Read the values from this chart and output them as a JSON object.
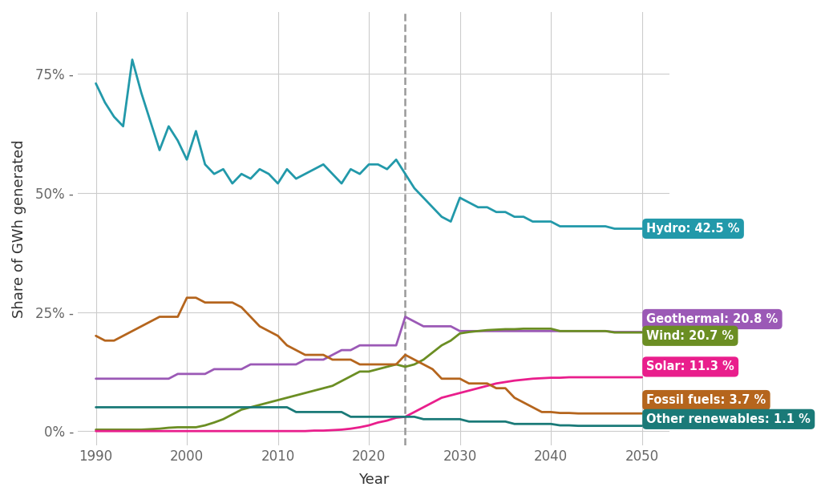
{
  "title": "",
  "xlabel": "Year",
  "ylabel": "Share of GWh generated",
  "background_color": "#ffffff",
  "dashed_line_x": 2024,
  "colors": {
    "hydro": "#2299aa",
    "geothermal": "#9b59b6",
    "wind": "#6b8e23",
    "solar": "#e91e8c",
    "fossil": "#b5651d",
    "other": "#1a7a78"
  },
  "labels": {
    "hydro": "Hydro: 42.5 %",
    "geothermal": "Geothermal: 20.8 %",
    "wind": "Wind: 20.7 %",
    "solar": "Solar: 11.3 %",
    "fossil": "Fossil fuels: 3.7 %",
    "other": "Other renewables: 1.1 %"
  },
  "hydro": {
    "years": [
      1990,
      1991,
      1992,
      1993,
      1994,
      1995,
      1996,
      1997,
      1998,
      1999,
      2000,
      2001,
      2002,
      2003,
      2004,
      2005,
      2006,
      2007,
      2008,
      2009,
      2010,
      2011,
      2012,
      2013,
      2014,
      2015,
      2016,
      2017,
      2018,
      2019,
      2020,
      2021,
      2022,
      2023,
      2024,
      2025,
      2026,
      2027,
      2028,
      2029,
      2030,
      2031,
      2032,
      2033,
      2034,
      2035,
      2036,
      2037,
      2038,
      2039,
      2040,
      2041,
      2042,
      2043,
      2044,
      2045,
      2046,
      2047,
      2048,
      2049,
      2050
    ],
    "values": [
      73,
      69,
      66,
      64,
      78,
      71,
      65,
      59,
      64,
      61,
      57,
      63,
      56,
      54,
      55,
      52,
      54,
      53,
      55,
      54,
      52,
      55,
      53,
      54,
      55,
      56,
      54,
      52,
      55,
      54,
      56,
      56,
      55,
      57,
      54,
      51,
      49,
      47,
      45,
      44,
      49,
      48,
      47,
      47,
      46,
      46,
      45,
      45,
      44,
      44,
      44,
      43,
      43,
      43,
      43,
      43,
      43,
      42.5,
      42.5,
      42.5,
      42.5
    ]
  },
  "geothermal": {
    "years": [
      1990,
      1991,
      1992,
      1993,
      1994,
      1995,
      1996,
      1997,
      1998,
      1999,
      2000,
      2001,
      2002,
      2003,
      2004,
      2005,
      2006,
      2007,
      2008,
      2009,
      2010,
      2011,
      2012,
      2013,
      2014,
      2015,
      2016,
      2017,
      2018,
      2019,
      2020,
      2021,
      2022,
      2023,
      2024,
      2025,
      2026,
      2027,
      2028,
      2029,
      2030,
      2031,
      2032,
      2033,
      2034,
      2035,
      2036,
      2037,
      2038,
      2039,
      2040,
      2041,
      2042,
      2043,
      2044,
      2045,
      2046,
      2047,
      2048,
      2049,
      2050
    ],
    "values": [
      11,
      11,
      11,
      11,
      11,
      11,
      11,
      11,
      11,
      12,
      12,
      12,
      12,
      13,
      13,
      13,
      13,
      14,
      14,
      14,
      14,
      14,
      14,
      15,
      15,
      15,
      16,
      17,
      17,
      18,
      18,
      18,
      18,
      18,
      24,
      23,
      22,
      22,
      22,
      22,
      21,
      21,
      21,
      21,
      21,
      21,
      21,
      21,
      21,
      21,
      21,
      21,
      21,
      21,
      21,
      21,
      21,
      20.8,
      20.8,
      20.8,
      20.8
    ]
  },
  "wind": {
    "years": [
      1990,
      1991,
      1992,
      1993,
      1994,
      1995,
      1996,
      1997,
      1998,
      1999,
      2000,
      2001,
      2002,
      2003,
      2004,
      2005,
      2006,
      2007,
      2008,
      2009,
      2010,
      2011,
      2012,
      2013,
      2014,
      2015,
      2016,
      2017,
      2018,
      2019,
      2020,
      2021,
      2022,
      2023,
      2024,
      2025,
      2026,
      2027,
      2028,
      2029,
      2030,
      2031,
      2032,
      2033,
      2034,
      2035,
      2036,
      2037,
      2038,
      2039,
      2040,
      2041,
      2042,
      2043,
      2044,
      2045,
      2046,
      2047,
      2048,
      2049,
      2050
    ],
    "values": [
      0.3,
      0.3,
      0.3,
      0.3,
      0.3,
      0.3,
      0.4,
      0.5,
      0.7,
      0.8,
      0.8,
      0.8,
      1.2,
      1.8,
      2.5,
      3.5,
      4.5,
      5.0,
      5.5,
      6.0,
      6.5,
      7.0,
      7.5,
      8.0,
      8.5,
      9.0,
      9.5,
      10.5,
      11.5,
      12.5,
      12.5,
      13.0,
      13.5,
      14.0,
      13.5,
      14.0,
      15.0,
      16.5,
      18.0,
      19.0,
      20.5,
      20.8,
      21.0,
      21.2,
      21.3,
      21.4,
      21.4,
      21.5,
      21.5,
      21.5,
      21.5,
      21.0,
      21.0,
      21.0,
      21.0,
      21.0,
      21.0,
      20.7,
      20.7,
      20.7,
      20.7
    ]
  },
  "solar": {
    "years": [
      1990,
      1991,
      1992,
      1993,
      1994,
      1995,
      1996,
      1997,
      1998,
      1999,
      2000,
      2001,
      2002,
      2003,
      2004,
      2005,
      2006,
      2007,
      2008,
      2009,
      2010,
      2011,
      2012,
      2013,
      2014,
      2015,
      2016,
      2017,
      2018,
      2019,
      2020,
      2021,
      2022,
      2023,
      2024,
      2025,
      2026,
      2027,
      2028,
      2029,
      2030,
      2031,
      2032,
      2033,
      2034,
      2035,
      2036,
      2037,
      2038,
      2039,
      2040,
      2041,
      2042,
      2043,
      2044,
      2045,
      2046,
      2047,
      2048,
      2049,
      2050
    ],
    "values": [
      0.0,
      0.0,
      0.0,
      0.0,
      0.0,
      0.0,
      0.0,
      0.0,
      0.0,
      0.0,
      0.0,
      0.0,
      0.0,
      0.0,
      0.0,
      0.0,
      0.0,
      0.0,
      0.0,
      0.0,
      0.0,
      0.0,
      0.0,
      0.0,
      0.1,
      0.1,
      0.2,
      0.3,
      0.5,
      0.8,
      1.2,
      1.8,
      2.2,
      2.8,
      3.0,
      4.0,
      5.0,
      6.0,
      7.0,
      7.5,
      8.0,
      8.5,
      9.0,
      9.5,
      10.0,
      10.3,
      10.6,
      10.8,
      11.0,
      11.1,
      11.2,
      11.2,
      11.3,
      11.3,
      11.3,
      11.3,
      11.3,
      11.3,
      11.3,
      11.3,
      11.3
    ]
  },
  "fossil": {
    "years": [
      1990,
      1991,
      1992,
      1993,
      1994,
      1995,
      1996,
      1997,
      1998,
      1999,
      2000,
      2001,
      2002,
      2003,
      2004,
      2005,
      2006,
      2007,
      2008,
      2009,
      2010,
      2011,
      2012,
      2013,
      2014,
      2015,
      2016,
      2017,
      2018,
      2019,
      2020,
      2021,
      2022,
      2023,
      2024,
      2025,
      2026,
      2027,
      2028,
      2029,
      2030,
      2031,
      2032,
      2033,
      2034,
      2035,
      2036,
      2037,
      2038,
      2039,
      2040,
      2041,
      2042,
      2043,
      2044,
      2045,
      2046,
      2047,
      2048,
      2049,
      2050
    ],
    "values": [
      20,
      19,
      19,
      20,
      21,
      22,
      23,
      24,
      24,
      24,
      28,
      28,
      27,
      27,
      27,
      27,
      26,
      24,
      22,
      21,
      20,
      18,
      17,
      16,
      16,
      16,
      15,
      15,
      15,
      14,
      14,
      14,
      14,
      14,
      16,
      15,
      14,
      13,
      11,
      11,
      11,
      10,
      10,
      10,
      9,
      9,
      7,
      6,
      5,
      4,
      4,
      3.8,
      3.8,
      3.7,
      3.7,
      3.7,
      3.7,
      3.7,
      3.7,
      3.7,
      3.7
    ]
  },
  "other": {
    "years": [
      1990,
      1991,
      1992,
      1993,
      1994,
      1995,
      1996,
      1997,
      1998,
      1999,
      2000,
      2001,
      2002,
      2003,
      2004,
      2005,
      2006,
      2007,
      2008,
      2009,
      2010,
      2011,
      2012,
      2013,
      2014,
      2015,
      2016,
      2017,
      2018,
      2019,
      2020,
      2021,
      2022,
      2023,
      2024,
      2025,
      2026,
      2027,
      2028,
      2029,
      2030,
      2031,
      2032,
      2033,
      2034,
      2035,
      2036,
      2037,
      2038,
      2039,
      2040,
      2041,
      2042,
      2043,
      2044,
      2045,
      2046,
      2047,
      2048,
      2049,
      2050
    ],
    "values": [
      5,
      5,
      5,
      5,
      5,
      5,
      5,
      5,
      5,
      5,
      5,
      5,
      5,
      5,
      5,
      5,
      5,
      5,
      5,
      5,
      5,
      5,
      4,
      4,
      4,
      4,
      4,
      4,
      3,
      3,
      3,
      3,
      3,
      3,
      3,
      3,
      2.5,
      2.5,
      2.5,
      2.5,
      2.5,
      2,
      2,
      2,
      2,
      2,
      1.5,
      1.5,
      1.5,
      1.5,
      1.5,
      1.2,
      1.2,
      1.1,
      1.1,
      1.1,
      1.1,
      1.1,
      1.1,
      1.1,
      1.1
    ]
  },
  "yticks": [
    0,
    25,
    50,
    75
  ],
  "ytick_labels": [
    "0% -",
    "25% -",
    "50% -",
    "75% -"
  ],
  "xticks": [
    1990,
    2000,
    2010,
    2020,
    2030,
    2040,
    2050
  ],
  "xlim": [
    1988,
    2053
  ],
  "ylim": [
    -3,
    88
  ]
}
